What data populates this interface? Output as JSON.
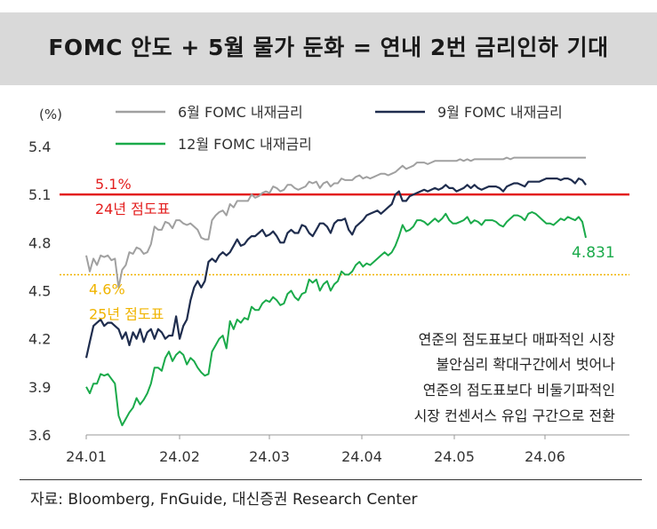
{
  "title": "FOMC 안도 + 5월 물가 둔화 = 연내 2번 금리인하 기대",
  "source": "자료: Bloomberg, FnGuide, 대신증권 Research Center",
  "chart_data": {
    "type": "line",
    "ylabel": "(%)",
    "ylim": [
      3.6,
      5.4
    ],
    "yticks": [
      3.6,
      3.9,
      4.2,
      4.5,
      4.8,
      5.1,
      5.4
    ],
    "ytick_labels": [
      "3.6",
      "3.9",
      "4.2",
      "4.5",
      "4.8",
      "5.1",
      "5.4"
    ],
    "xtick_labels": [
      "24.01",
      "24.02",
      "24.03",
      "24.04",
      "24.05",
      "24.06"
    ],
    "legend": [
      "6월 FOMC 내재금리",
      "9월 FOMC 내재금리",
      "12월 FOMC 내재금리"
    ],
    "colors": [
      "#a0a0a0",
      "#1f2d4e",
      "#1aaa4a"
    ],
    "series": [
      {
        "name": "6월 FOMC 내재금리",
        "color": "#a0a0a0",
        "values": [
          4.72,
          4.62,
          4.7,
          4.66,
          4.72,
          4.71,
          4.72,
          4.69,
          4.7,
          4.52,
          4.63,
          4.66,
          4.74,
          4.73,
          4.77,
          4.76,
          4.73,
          4.74,
          4.79,
          4.9,
          4.88,
          4.88,
          4.93,
          4.92,
          4.89,
          4.94,
          4.94,
          4.92,
          4.91,
          4.92,
          4.9,
          4.88,
          4.83,
          4.82,
          4.82,
          4.94,
          4.97,
          4.99,
          5.0,
          4.97,
          5.04,
          5.02,
          5.06,
          5.06,
          5.06,
          5.06,
          5.1,
          5.08,
          5.09,
          5.11,
          5.12,
          5.11,
          5.15,
          5.14,
          5.12,
          5.13,
          5.16,
          5.16,
          5.14,
          5.13,
          5.14,
          5.15,
          5.18,
          5.17,
          5.18,
          5.14,
          5.17,
          5.18,
          5.15,
          5.17,
          5.17,
          5.2,
          5.19,
          5.19,
          5.19,
          5.21,
          5.22,
          5.2,
          5.21,
          5.2,
          5.21,
          5.22,
          5.23,
          5.23,
          5.22,
          5.23,
          5.24,
          5.26,
          5.28,
          5.26,
          5.27,
          5.28,
          5.3,
          5.3,
          5.3,
          5.29,
          5.3,
          5.31,
          5.31,
          5.31,
          5.31,
          5.31,
          5.31,
          5.31,
          5.32,
          5.31,
          5.32,
          5.31,
          5.32,
          5.32,
          5.32,
          5.32,
          5.32,
          5.32,
          5.32,
          5.32,
          5.32,
          5.33,
          5.32,
          5.33,
          5.33,
          5.33,
          5.33,
          5.33,
          5.33,
          5.33,
          5.33,
          5.33,
          5.33,
          5.33,
          5.33,
          5.33,
          5.33,
          5.33,
          5.33,
          5.33,
          5.33,
          5.33,
          5.33,
          5.33
        ]
      },
      {
        "name": "9월 FOMC 내재금리",
        "color": "#1f2d4e",
        "values": [
          4.08,
          4.18,
          4.28,
          4.3,
          4.32,
          4.28,
          4.3,
          4.3,
          4.28,
          4.26,
          4.2,
          4.24,
          4.16,
          4.24,
          4.2,
          4.26,
          4.18,
          4.24,
          4.26,
          4.2,
          4.26,
          4.24,
          4.2,
          4.22,
          4.22,
          4.34,
          4.2,
          4.28,
          4.32,
          4.44,
          4.52,
          4.56,
          4.52,
          4.56,
          4.68,
          4.7,
          4.68,
          4.72,
          4.74,
          4.72,
          4.74,
          4.78,
          4.82,
          4.78,
          4.79,
          4.82,
          4.84,
          4.84,
          4.86,
          4.88,
          4.84,
          4.85,
          4.87,
          4.84,
          4.8,
          4.8,
          4.86,
          4.88,
          4.86,
          4.86,
          4.91,
          4.9,
          4.86,
          4.84,
          4.88,
          4.92,
          4.92,
          4.9,
          4.86,
          4.92,
          4.94,
          4.94,
          4.95,
          4.88,
          4.85,
          4.9,
          4.92,
          4.94,
          4.97,
          4.98,
          4.99,
          5.0,
          4.98,
          5.0,
          5.02,
          5.04,
          5.1,
          5.12,
          5.06,
          5.06,
          5.09,
          5.1,
          5.11,
          5.12,
          5.13,
          5.12,
          5.13,
          5.14,
          5.13,
          5.14,
          5.16,
          5.14,
          5.14,
          5.12,
          5.13,
          5.14,
          5.16,
          5.14,
          5.16,
          5.14,
          5.13,
          5.14,
          5.15,
          5.15,
          5.15,
          5.14,
          5.12,
          5.15,
          5.16,
          5.17,
          5.17,
          5.16,
          5.15,
          5.18,
          5.18,
          5.18,
          5.18,
          5.19,
          5.2,
          5.2,
          5.2,
          5.2,
          5.19,
          5.2,
          5.2,
          5.19,
          5.17,
          5.2,
          5.19,
          5.16
        ]
      },
      {
        "name": "12월 FOMC 내재금리",
        "color": "#1aaa4a",
        "values": [
          3.9,
          3.86,
          3.92,
          3.92,
          3.98,
          3.97,
          3.98,
          3.95,
          3.92,
          3.72,
          3.66,
          3.7,
          3.74,
          3.77,
          3.83,
          3.79,
          3.82,
          3.86,
          3.92,
          4.02,
          4.02,
          4.0,
          4.08,
          4.12,
          4.06,
          4.1,
          4.12,
          4.1,
          4.04,
          4.08,
          4.06,
          4.02,
          3.99,
          3.97,
          3.98,
          4.12,
          4.16,
          4.2,
          4.22,
          4.14,
          4.31,
          4.26,
          4.32,
          4.3,
          4.33,
          4.32,
          4.4,
          4.38,
          4.38,
          4.42,
          4.44,
          4.43,
          4.46,
          4.44,
          4.41,
          4.42,
          4.48,
          4.5,
          4.46,
          4.44,
          4.48,
          4.49,
          4.57,
          4.55,
          4.57,
          4.5,
          4.54,
          4.56,
          4.5,
          4.54,
          4.56,
          4.62,
          4.6,
          4.6,
          4.62,
          4.66,
          4.68,
          4.65,
          4.67,
          4.66,
          4.68,
          4.7,
          4.72,
          4.74,
          4.72,
          4.74,
          4.78,
          4.84,
          4.91,
          4.87,
          4.88,
          4.9,
          4.94,
          4.94,
          4.93,
          4.91,
          4.93,
          4.95,
          4.93,
          4.95,
          4.98,
          4.94,
          4.92,
          4.92,
          4.93,
          4.94,
          4.96,
          4.92,
          4.94,
          4.93,
          4.91,
          4.94,
          4.94,
          4.94,
          4.93,
          4.91,
          4.9,
          4.93,
          4.95,
          4.97,
          4.97,
          4.96,
          4.94,
          4.98,
          4.99,
          4.98,
          4.96,
          4.94,
          4.92,
          4.92,
          4.91,
          4.93,
          4.95,
          4.94,
          4.96,
          4.95,
          4.94,
          4.96,
          4.93,
          4.83
        ]
      }
    ],
    "hlines": [
      {
        "value": 5.1,
        "color": "#e31e1e",
        "label_top": "5.1%",
        "label_bottom": "24년 점도표"
      },
      {
        "value": 4.6,
        "color": "#f0b400",
        "label_top": "4.6%",
        "label_bottom": "25년 점도표"
      }
    ],
    "end_label": "4.831",
    "annotation": [
      "연준의 점도표보다 매파적인 시장",
      "불안심리 확대구간에서 벗어나",
      "연준의 점도표보다 비둘기파적인",
      "시장 컨센서스 유입 구간으로 전환"
    ]
  }
}
